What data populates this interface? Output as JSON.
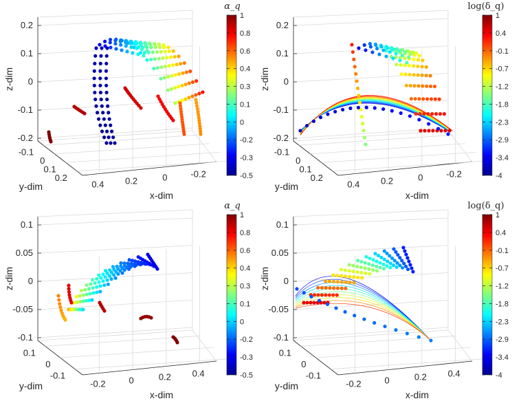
{
  "chart_data": [
    {
      "type": "scatter3d",
      "panel": "top-left",
      "xlabel": "x-dim",
      "ylabel": "y-dim",
      "zlabel": "z-dim",
      "x_ticks": [
        "0.4",
        "0.2",
        "0",
        "-0.2"
      ],
      "y_ticks": [
        "-0.1",
        "0",
        "0.1",
        "0.2"
      ],
      "z_ticks": [
        "0.2",
        "0.1",
        "0",
        "-0.1",
        "-0.2"
      ],
      "colorbar": {
        "title": "α_q",
        "ticks": [
          "1",
          "0.8",
          "0.6",
          "0.4",
          "0.3",
          "0.1",
          "0",
          "-0.2",
          "-0.3",
          "-0.5"
        ],
        "range": [
          -0.5,
          1
        ]
      }
    },
    {
      "type": "scatter3d",
      "panel": "top-right",
      "xlabel": "x-dim",
      "ylabel": "y-dim",
      "zlabel": "z-dim",
      "x_ticks": [
        "0.4",
        "0.2",
        "0",
        "-0.2"
      ],
      "y_ticks": [
        "-0.1",
        "0",
        "0.1",
        "0.2"
      ],
      "z_ticks": [
        "0.2",
        "0.1",
        "0",
        "-0.1",
        "-0.2"
      ],
      "colorbar": {
        "title": "log(δ_q)",
        "ticks": [
          "1",
          "0.4",
          "-0.1",
          "-0.7",
          "-1.2",
          "-1.8",
          "-2.3",
          "-2.9",
          "-3.4",
          "-4"
        ],
        "range": [
          -4,
          1
        ]
      }
    },
    {
      "type": "scatter3d",
      "panel": "bottom-left",
      "xlabel": "x-dim",
      "ylabel": "y-dim",
      "zlabel": "z-dim",
      "x_ticks": [
        "-0.2",
        "0",
        "0.2",
        "0.4"
      ],
      "y_ticks": [
        "0.1",
        "0",
        "-0.1"
      ],
      "z_ticks": [
        "0.1",
        "0.05",
        "0",
        "-0.05",
        "-0.1"
      ],
      "colorbar": {
        "title": "α_q",
        "ticks": [
          "1",
          "0.8",
          "0.6",
          "0.4",
          "0.3",
          "0.1",
          "0",
          "-0.2",
          "-0.3",
          "-0.5"
        ],
        "range": [
          -0.5,
          1
        ]
      }
    },
    {
      "type": "scatter3d",
      "panel": "bottom-right",
      "xlabel": "x-dim",
      "ylabel": "y-dim",
      "zlabel": "z-dim",
      "x_ticks": [
        "-0.2",
        "0",
        "0.2",
        "0.4"
      ],
      "y_ticks": [
        "0.1",
        "0",
        "-0.1"
      ],
      "z_ticks": [
        "0.1",
        "0.05",
        "0",
        "-0.05",
        "-0.1"
      ],
      "colorbar": {
        "title": "log(δ_q)",
        "ticks": [
          "1",
          "0.4",
          "-0.1",
          "-0.7",
          "-1.2",
          "-1.8",
          "-2.3",
          "-2.9",
          "-3.4",
          "-4"
        ],
        "range": [
          -4,
          1
        ]
      }
    }
  ]
}
